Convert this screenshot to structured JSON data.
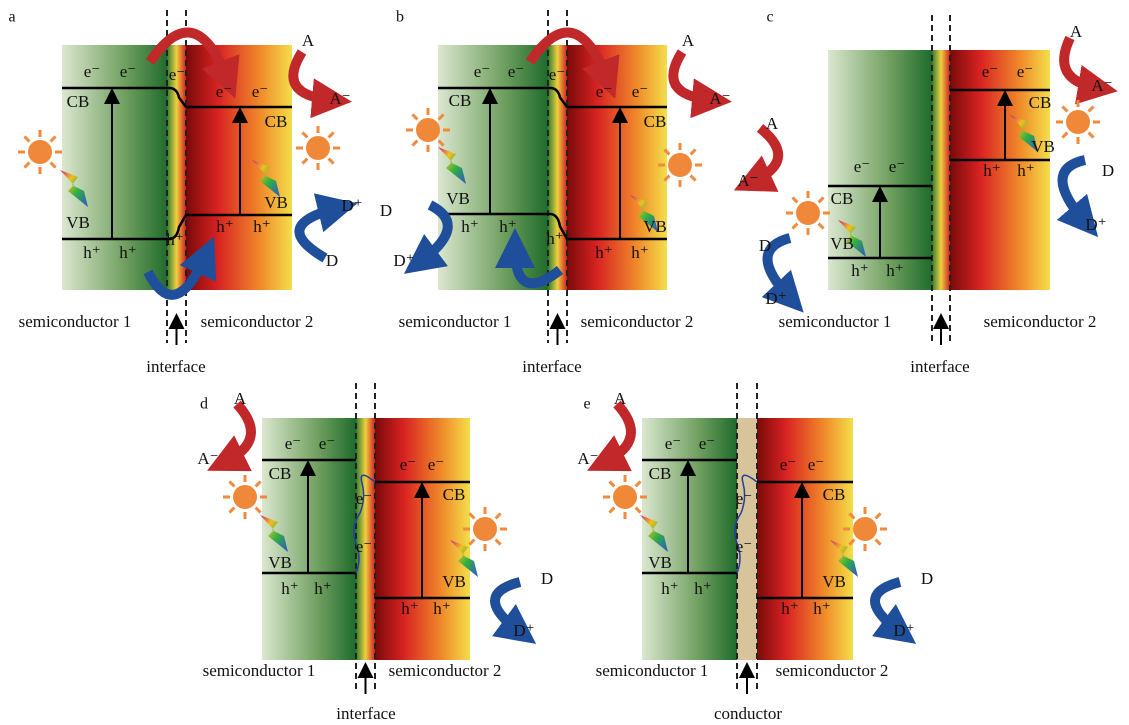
{
  "panels": [
    {
      "letter": "a",
      "texts": [
        "e⁻",
        "e⁻",
        "e⁻",
        "CB",
        "e⁻",
        "e⁻",
        "CB",
        "VB",
        "h⁺",
        "h⁺",
        "h⁺",
        "h⁺",
        "h⁺",
        "VB",
        "A",
        "A⁻",
        "D⁺",
        "D"
      ],
      "left": "semiconductor 1",
      "right": "semiconductor 2",
      "bottom": "interface"
    },
    {
      "letter": "b",
      "texts": [
        "e⁻",
        "e⁻",
        "CB",
        "e⁻",
        "e⁻",
        "e⁻",
        "CB",
        "VB",
        "h⁺",
        "h⁺",
        "h⁺",
        "h⁺",
        "h⁺",
        "VB",
        "A",
        "A⁻",
        "D",
        "D⁺"
      ],
      "left": "semiconductor 1",
      "right": "semiconductor 2",
      "bottom": "interface"
    },
    {
      "letter": "c",
      "texts": [
        "e⁻",
        "e⁻",
        "CB",
        "VB",
        "h⁺",
        "h⁺",
        "e⁻",
        "e⁻",
        "CB",
        "VB",
        "h⁺",
        "h⁺",
        "A",
        "A⁻",
        "D",
        "D⁺",
        "A",
        "A⁻",
        "D",
        "D⁺"
      ],
      "left": "semiconductor 1",
      "right": "semiconductor 2",
      "bottom": "interface"
    },
    {
      "letter": "d",
      "texts": [
        "e⁻",
        "e⁻",
        "CB",
        "VB",
        "h⁺",
        "h⁺",
        "e⁻",
        "e⁻",
        "e⁻",
        "e⁻",
        "CB",
        "VB",
        "h⁺",
        "h⁺",
        "A",
        "A⁻",
        "D",
        "D⁺"
      ],
      "left": "semiconductor 1",
      "right": "semiconductor 2",
      "bottom": "interface"
    },
    {
      "letter": "e",
      "texts": [
        "e⁻",
        "e⁻",
        "CB",
        "VB",
        "h⁺",
        "h⁺",
        "e⁻",
        "e⁻",
        "e⁻",
        "e⁻",
        "CB",
        "VB",
        "h⁺",
        "h⁺",
        "A",
        "A⁻",
        "D",
        "D⁺"
      ],
      "left": "semiconductor 1",
      "right": "semiconductor 2",
      "bottom": "conductor"
    }
  ]
}
